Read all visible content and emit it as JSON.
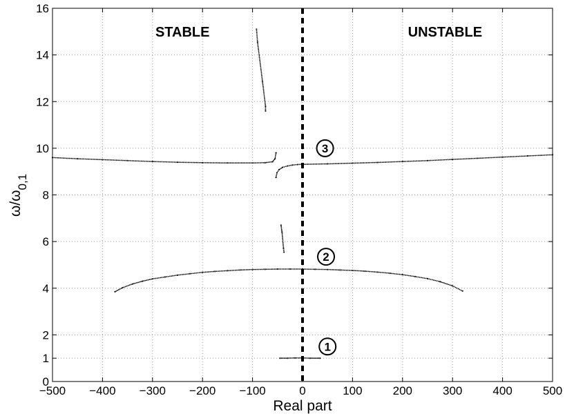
{
  "chart_data": {
    "type": "scatter",
    "xlabel": "Real part",
    "ylabel_main": "ω/ω",
    "ylabel_sub": "0,1",
    "xlim": [
      -500,
      500
    ],
    "ylim": [
      0,
      16
    ],
    "xticks": [
      -500,
      -400,
      -300,
      -200,
      -100,
      0,
      100,
      200,
      300,
      400,
      500
    ],
    "xtick_labels": [
      "−500",
      "−400",
      "−300",
      "−200",
      "−100",
      "0",
      "100",
      "200",
      "300",
      "400",
      "500"
    ],
    "yticks": [
      0,
      1,
      2,
      4,
      6,
      8,
      10,
      12,
      14,
      16
    ],
    "ytick_labels": [
      "0",
      "1",
      "2",
      "4",
      "6",
      "8",
      "10",
      "12",
      "14",
      "16"
    ],
    "grid": true,
    "region_labels": [
      {
        "text": "STABLE",
        "x": -240,
        "y": 15
      },
      {
        "text": "UNSTABLE",
        "x": 285,
        "y": 15
      }
    ],
    "stability_boundary_x": 0,
    "mode_markers": [
      {
        "label": "1",
        "x": 50,
        "y": 1.5
      },
      {
        "label": "2",
        "x": 47,
        "y": 5.35
      },
      {
        "label": "3",
        "x": 45,
        "y": 10.0
      }
    ],
    "series": [
      {
        "points": [
          [
            -45,
            1.0
          ],
          [
            -30,
            1.0
          ],
          [
            -15,
            1.01
          ],
          [
            0,
            1.01
          ],
          [
            15,
            1.0
          ],
          [
            35,
            1.0
          ]
        ]
      },
      {
        "points": [
          [
            -375,
            3.85
          ],
          [
            -360,
            4.02
          ],
          [
            -340,
            4.18
          ],
          [
            -320,
            4.3
          ],
          [
            -300,
            4.4
          ],
          [
            -275,
            4.48
          ],
          [
            -250,
            4.56
          ],
          [
            -225,
            4.62
          ],
          [
            -200,
            4.68
          ],
          [
            -175,
            4.72
          ],
          [
            -150,
            4.75
          ],
          [
            -125,
            4.78
          ],
          [
            -100,
            4.8
          ],
          [
            -75,
            4.81
          ],
          [
            -50,
            4.82
          ],
          [
            -25,
            4.82
          ],
          [
            0,
            4.82
          ],
          [
            25,
            4.81
          ],
          [
            50,
            4.8
          ],
          [
            75,
            4.78
          ],
          [
            100,
            4.76
          ],
          [
            125,
            4.73
          ],
          [
            150,
            4.69
          ],
          [
            175,
            4.64
          ],
          [
            200,
            4.58
          ],
          [
            225,
            4.5
          ],
          [
            250,
            4.41
          ],
          [
            275,
            4.28
          ],
          [
            300,
            4.1
          ],
          [
            320,
            3.88
          ]
        ]
      },
      {
        "points": [
          [
            -500,
            9.6
          ],
          [
            -450,
            9.55
          ],
          [
            -400,
            9.51
          ],
          [
            -350,
            9.47
          ],
          [
            -300,
            9.43
          ],
          [
            -250,
            9.4
          ],
          [
            -200,
            9.38
          ],
          [
            -150,
            9.37
          ],
          [
            -100,
            9.37
          ],
          [
            -75,
            9.38
          ],
          [
            -60,
            9.42
          ],
          [
            -55,
            9.55
          ],
          [
            -53,
            9.8
          ]
        ]
      },
      {
        "points": [
          [
            -53,
            8.75
          ],
          [
            -51,
            8.95
          ],
          [
            -47,
            9.08
          ],
          [
            -40,
            9.18
          ],
          [
            -30,
            9.24
          ],
          [
            -20,
            9.28
          ],
          [
            -10,
            9.3
          ],
          [
            0,
            9.31
          ],
          [
            50,
            9.33
          ],
          [
            100,
            9.36
          ],
          [
            150,
            9.39
          ],
          [
            200,
            9.43
          ],
          [
            250,
            9.47
          ],
          [
            300,
            9.52
          ],
          [
            350,
            9.57
          ],
          [
            400,
            9.62
          ],
          [
            450,
            9.67
          ],
          [
            500,
            9.72
          ]
        ]
      },
      {
        "points": [
          [
            -92,
            15.1
          ],
          [
            -90,
            14.55
          ],
          [
            -80,
            12.85
          ],
          [
            -74,
            11.8
          ],
          [
            -74,
            11.6
          ],
          [
            -43,
            6.7
          ],
          [
            -41,
            6.4
          ],
          [
            -38,
            5.7
          ],
          [
            -37,
            5.55
          ]
        ]
      }
    ]
  }
}
